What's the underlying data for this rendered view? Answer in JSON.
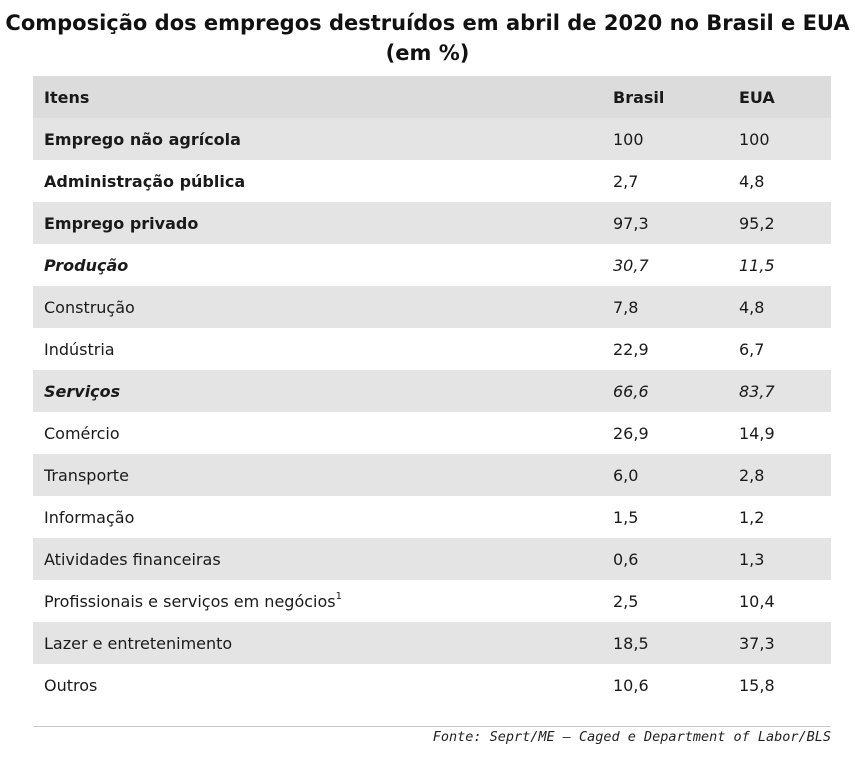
{
  "title_line1": "Composição dos empregos destruídos em abril de 2020 no Brasil e EUA",
  "title_line2": "(em %)",
  "columns": [
    "Itens",
    "Brasil",
    "EUA"
  ],
  "rows": [
    {
      "item": "Emprego não agrícola",
      "brasil": "100",
      "eua": "100",
      "style": "bold"
    },
    {
      "item": "Administração pública",
      "brasil": "2,7",
      "eua": "4,8",
      "style": "bold"
    },
    {
      "item": "Emprego privado",
      "brasil": "97,3",
      "eua": "95,2",
      "style": "bold"
    },
    {
      "item": "Produção",
      "brasil": "30,7",
      "eua": "11,5",
      "style": "italic"
    },
    {
      "item": "Construção",
      "brasil": "7,8",
      "eua": "4,8",
      "style": "normal"
    },
    {
      "item": "Indústria",
      "brasil": "22,9",
      "eua": "6,7",
      "style": "normal"
    },
    {
      "item": "Serviços",
      "brasil": "66,6",
      "eua": "83,7",
      "style": "italic"
    },
    {
      "item": "Comércio",
      "brasil": "26,9",
      "eua": "14,9",
      "style": "normal"
    },
    {
      "item": "Transporte",
      "brasil": "6,0",
      "eua": "2,8",
      "style": "normal"
    },
    {
      "item": "Informação",
      "brasil": "1,5",
      "eua": "1,2",
      "style": "normal"
    },
    {
      "item": "Atividades financeiras",
      "brasil": "0,6",
      "eua": "1,3",
      "style": "normal"
    },
    {
      "item": "Profissionais e serviços em negócios",
      "footnote": "1",
      "brasil": "2,5",
      "eua": "10,4",
      "style": "normal"
    },
    {
      "item": "Lazer e entretenimento",
      "brasil": "18,5",
      "eua": "37,3",
      "style": "normal"
    },
    {
      "item": "Outros",
      "brasil": "10,6",
      "eua": "15,8",
      "style": "normal"
    }
  ],
  "source": "Fonte: Seprt/ME – Caged e Department of Labor/BLS",
  "colors": {
    "header_bg": "#dcdcdc",
    "shade_bg": "#e4e4e4",
    "plain_bg": "#ffffff"
  }
}
